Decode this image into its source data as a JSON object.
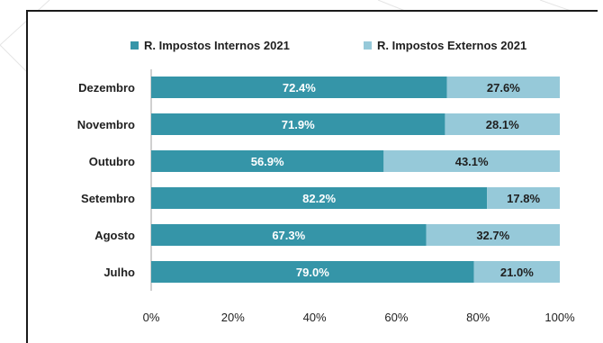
{
  "chart_data": {
    "type": "bar",
    "orientation": "horizontal",
    "stacked": true,
    "categories": [
      "Dezembro",
      "Novembro",
      "Outubro",
      "Setembro",
      "Agosto",
      "Julho"
    ],
    "series": [
      {
        "name": "R. Impostos Internos 2021",
        "color": "#3595a8",
        "label_color": "#ffffff",
        "values": [
          72.4,
          71.9,
          56.9,
          82.2,
          67.3,
          79.0
        ],
        "labels": [
          "72.4%",
          "71.9%",
          "56.9%",
          "82.2%",
          "67.3%",
          "79.0%"
        ]
      },
      {
        "name": "R. Impostos Externos 2021",
        "color": "#96c9d9",
        "label_color": "#1f1f1f",
        "values": [
          27.6,
          28.1,
          43.1,
          17.8,
          32.7,
          21.0
        ],
        "labels": [
          "27.6%",
          "28.1%",
          "43.1%",
          "17.8%",
          "32.7%",
          "21.0%"
        ]
      }
    ],
    "xlim": [
      0,
      100
    ],
    "xticks": [
      0,
      20,
      40,
      60,
      80,
      100
    ],
    "xtick_labels": [
      "0%",
      "20%",
      "40%",
      "60%",
      "80%",
      "100%"
    ],
    "legend_position": "top",
    "grid": false
  }
}
